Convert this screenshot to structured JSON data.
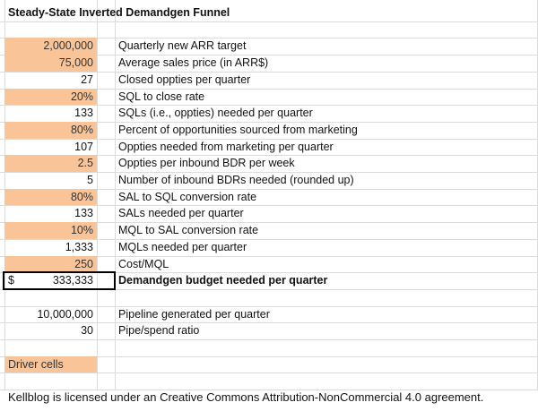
{
  "title": "Steady-State Inverted Demandgen Funnel",
  "rows": [
    {
      "value": "2,000,000",
      "label": "Quarterly new ARR target",
      "driver": true
    },
    {
      "value": "75,000",
      "label": "Average sales price (in ARR$)",
      "driver": true
    },
    {
      "value": "27",
      "label": "Closed oppties per quarter",
      "driver": false
    },
    {
      "value": "20%",
      "label": "SQL to close rate",
      "driver": true
    },
    {
      "value": "133",
      "label": "SQLs (i.e., oppties) needed per quarter",
      "driver": false
    },
    {
      "value": "80%",
      "label": "Percent of opportunities sourced from marketing",
      "driver": true
    },
    {
      "value": "107",
      "label": "Oppties needed from marketing per quarter",
      "driver": false
    },
    {
      "value": "2.5",
      "label": "Oppties per inbound BDR per week",
      "driver": true
    },
    {
      "value": "5",
      "label": "Number of inbound BDRs needed (rounded up)",
      "driver": false
    },
    {
      "value": "80%",
      "label": "SAL to SQL conversion rate",
      "driver": true
    },
    {
      "value": "133",
      "label": "SALs needed per quarter",
      "driver": false
    },
    {
      "value": "10%",
      "label": "MQL to SAL conversion rate",
      "driver": true
    },
    {
      "value": "1,333",
      "label": "MQLs needed per quarter",
      "driver": false
    },
    {
      "value": "250",
      "label": "Cost/MQL",
      "driver": true
    }
  ],
  "budget": {
    "currency": "$",
    "value": "333,333",
    "label": "Demandgen budget needed per quarter"
  },
  "pipeline_rows": [
    {
      "value": "10,000,000",
      "label": "Pipeline generated per quarter"
    },
    {
      "value": "30",
      "label": "Pipe/spend ratio"
    }
  ],
  "legend": "Driver cells",
  "footer": "Kellblog is licensed under an Creative Commons Attribution-NonCommercial 4.0  agreement."
}
